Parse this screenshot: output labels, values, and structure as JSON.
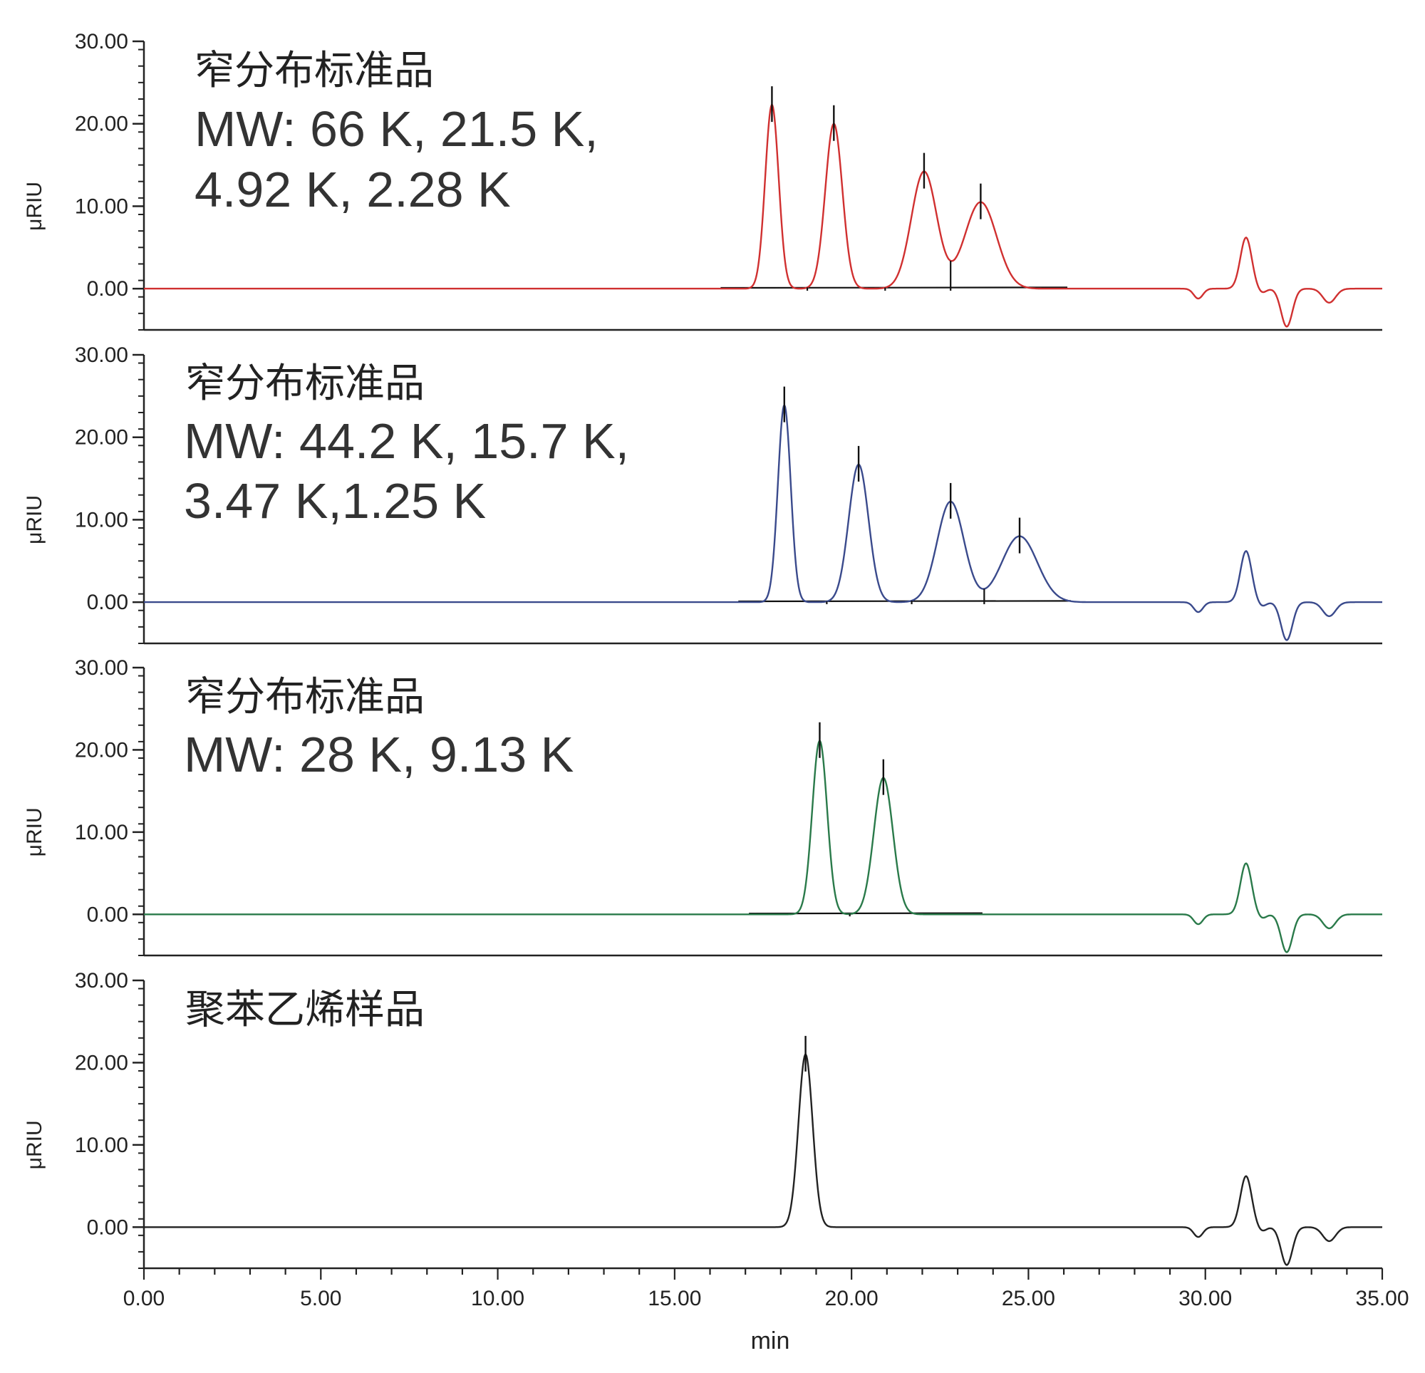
{
  "chart_data": [
    {
      "type": "line",
      "title": "窄分布标准品",
      "annotation_lines": [
        "MW: 66 K, 21.5 K,",
        "4.92 K, 2.28 K"
      ],
      "ylabel": "μRIU",
      "xlim": [
        0,
        35
      ],
      "ylim": [
        -5,
        30
      ],
      "yticks": [
        "0.00",
        "10.00",
        "20.00",
        "30.00"
      ],
      "color": "#d03030",
      "peaks": [
        {
          "x": 17.75,
          "y": 22.3,
          "w": 0.19
        },
        {
          "x": 19.5,
          "y": 20.0,
          "w": 0.24
        },
        {
          "x": 22.05,
          "y": 14.2,
          "w": 0.36
        },
        {
          "x": 23.65,
          "y": 10.5,
          "w": 0.45
        }
      ],
      "peak_markers": [
        17.75,
        19.5,
        22.05,
        23.65
      ],
      "baseline_range": [
        16.3,
        26.1
      ],
      "baseline_drops": [
        18.75,
        20.95,
        22.8
      ]
    },
    {
      "type": "line",
      "title": "窄分布标准品",
      "annotation_lines": [
        "MW: 44.2 K, 15.7 K,",
        "3.47 K,1.25 K"
      ],
      "ylabel": "μRIU",
      "xlim": [
        0,
        35
      ],
      "ylim": [
        -5,
        30
      ],
      "yticks": [
        "0.00",
        "10.00",
        "20.00",
        "30.00"
      ],
      "color": "#3a4a8c",
      "peaks": [
        {
          "x": 18.1,
          "y": 23.9,
          "w": 0.18
        },
        {
          "x": 20.2,
          "y": 16.7,
          "w": 0.28
        },
        {
          "x": 22.8,
          "y": 12.2,
          "w": 0.38
        },
        {
          "x": 24.75,
          "y": 8.0,
          "w": 0.5
        }
      ],
      "peak_markers": [
        18.1,
        20.2,
        22.8,
        24.75
      ],
      "baseline_range": [
        16.8,
        26.2
      ],
      "baseline_drops": [
        19.3,
        21.7,
        23.75
      ]
    },
    {
      "type": "line",
      "title": "窄分布标准品",
      "annotation_lines": [
        "MW: 28 K, 9.13 K"
      ],
      "ylabel": "μRIU",
      "xlim": [
        0,
        35
      ],
      "ylim": [
        -5,
        30
      ],
      "yticks": [
        "0.00",
        "10.00",
        "20.00",
        "30.00"
      ],
      "color": "#2a7a4a",
      "peaks": [
        {
          "x": 19.1,
          "y": 21.1,
          "w": 0.21
        },
        {
          "x": 20.9,
          "y": 16.6,
          "w": 0.27
        }
      ],
      "peak_markers": [
        19.1,
        20.9
      ],
      "baseline_range": [
        17.1,
        23.7
      ],
      "baseline_drops": [
        19.95
      ]
    },
    {
      "type": "line",
      "title": "聚苯乙烯样品",
      "annotation_lines": [],
      "ylabel": "μRIU",
      "xlim": [
        0,
        35
      ],
      "ylim": [
        -5,
        30
      ],
      "yticks": [
        "0.00",
        "10.00",
        "20.00",
        "30.00"
      ],
      "xticks": [
        "0.00",
        "5.00",
        "10.00",
        "15.00",
        "20.00",
        "25.00",
        "30.00",
        "35.00"
      ],
      "xlabel": "min",
      "color": "#222222",
      "peaks": [
        {
          "x": 18.7,
          "y": 21.0,
          "w": 0.2
        }
      ],
      "peak_markers": [
        18.7
      ],
      "baseline_range": [],
      "baseline_drops": []
    }
  ],
  "system_peaks": [
    {
      "x": 29.8,
      "y": -1.2,
      "w": 0.13
    },
    {
      "x": 31.15,
      "y": 6.2,
      "w": 0.16
    },
    {
      "x": 32.3,
      "y": -4.6,
      "w": 0.16
    },
    {
      "x": 33.5,
      "y": -1.7,
      "w": 0.18
    },
    {
      "x": 31.6,
      "y": -0.5,
      "w": 0.12
    }
  ]
}
